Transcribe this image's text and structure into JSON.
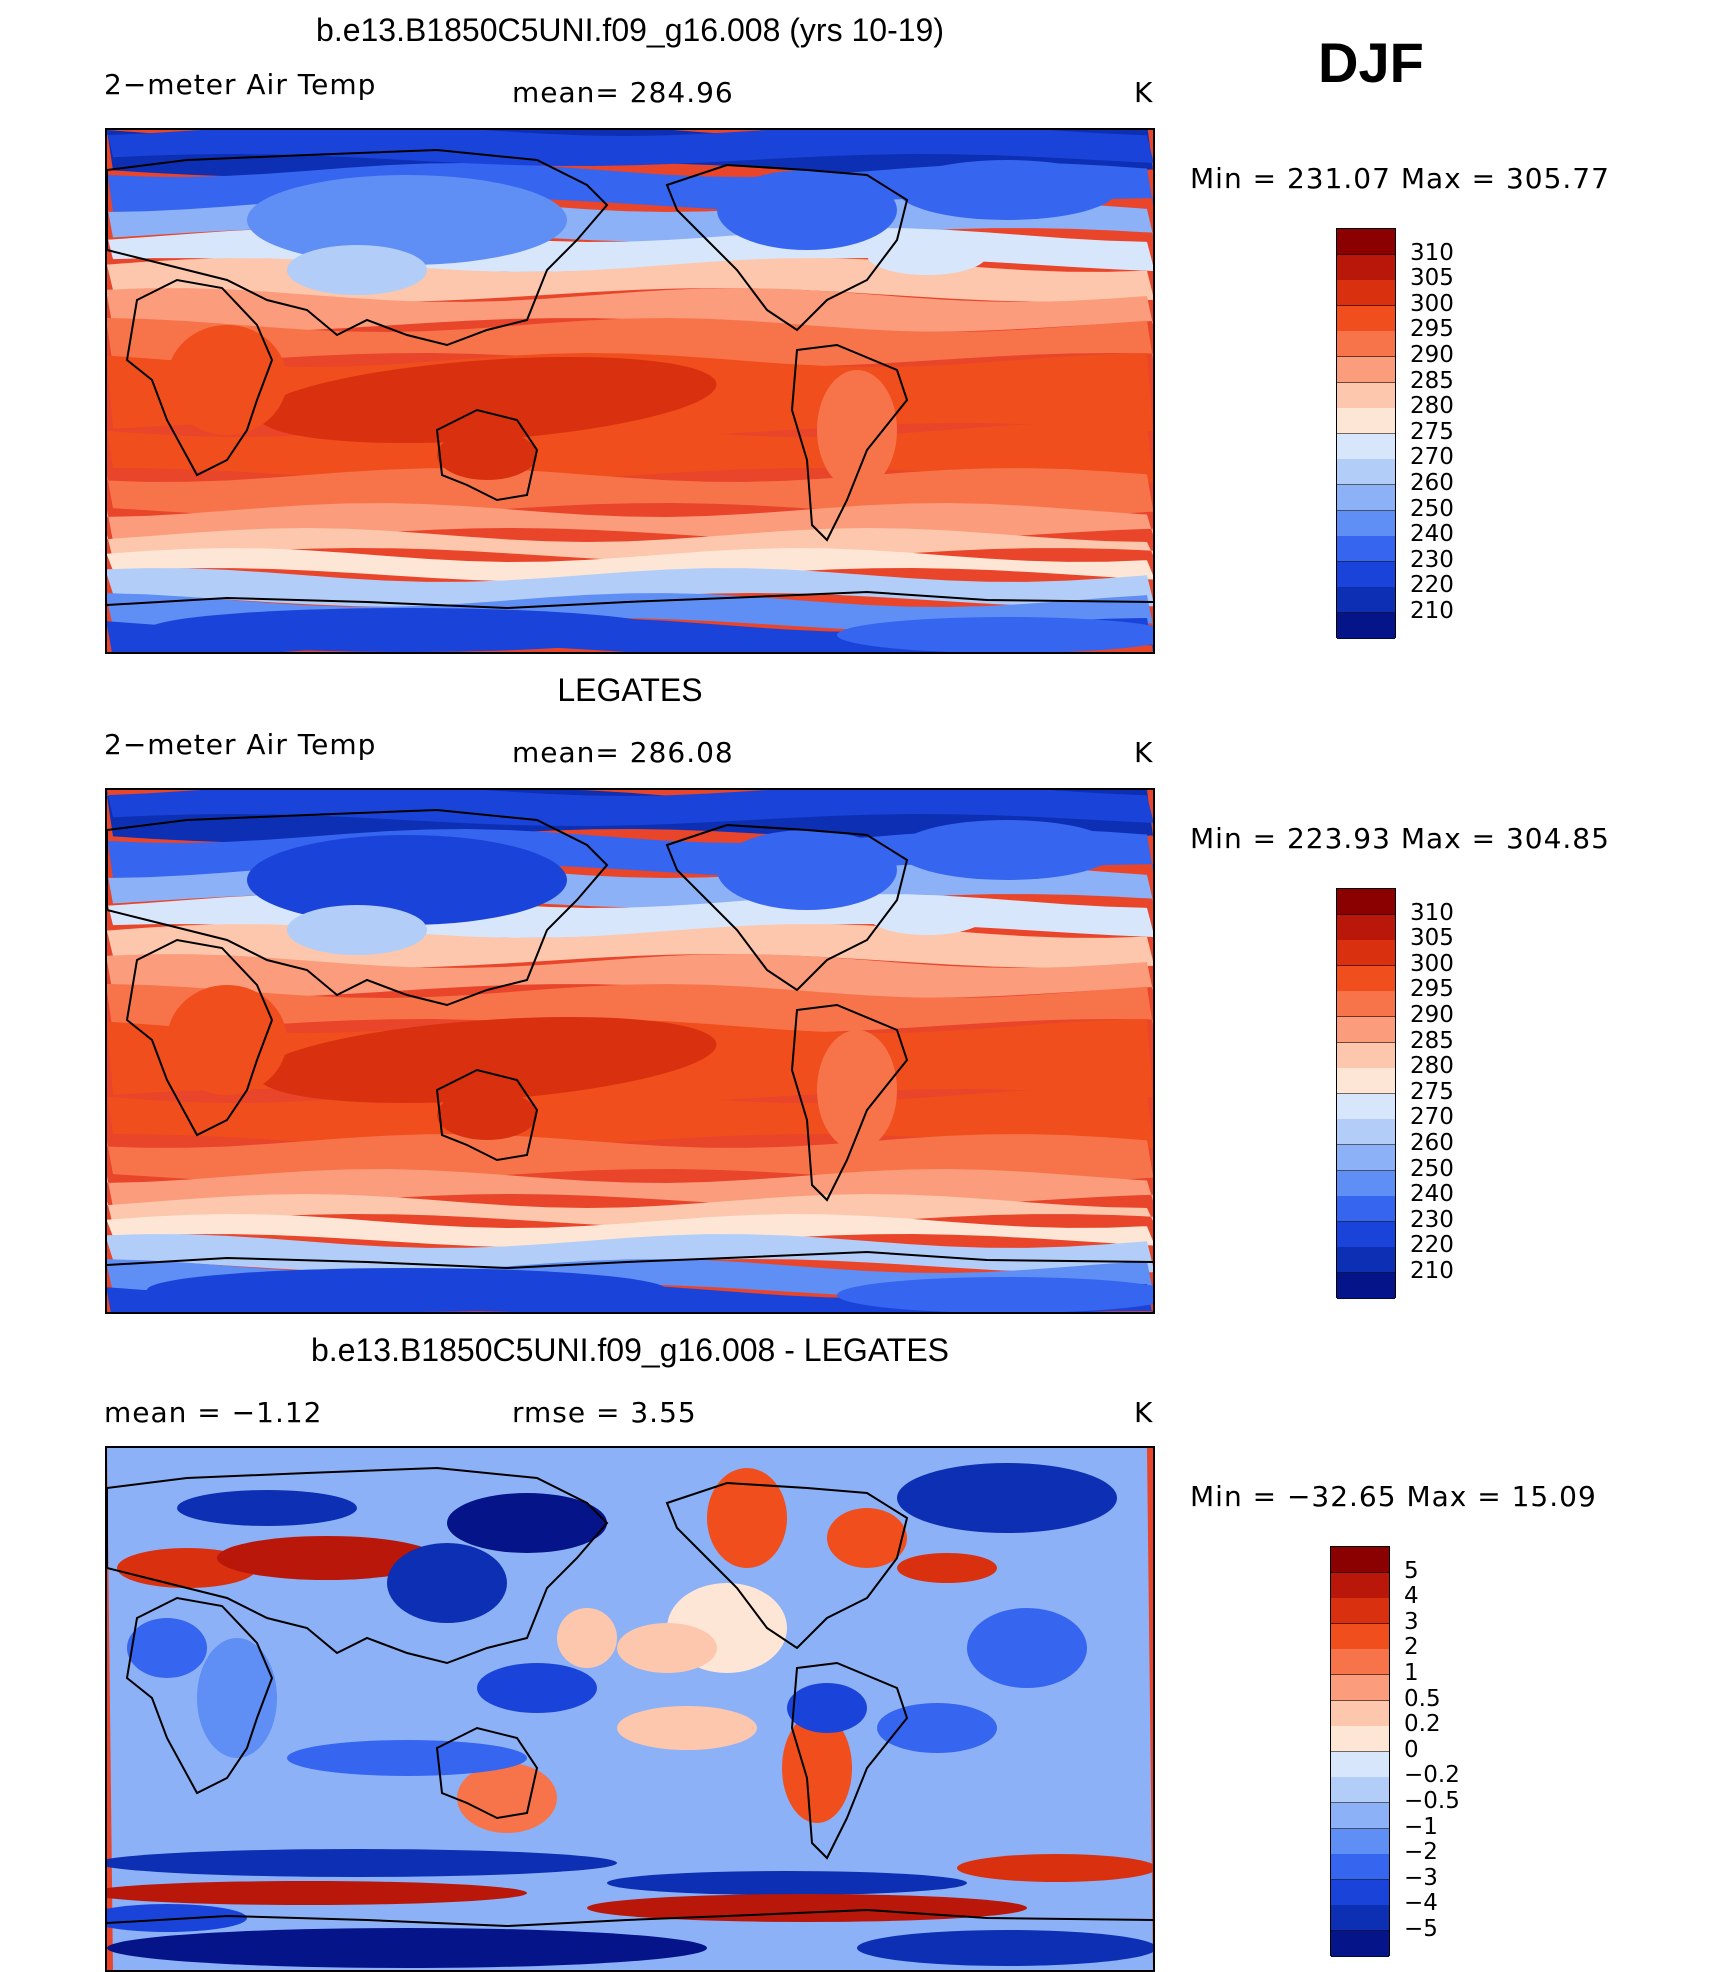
{
  "season_label": "DJF",
  "panels": [
    {
      "title": "b.e13.B1850C5UNI.f09_g16.008 (yrs 10-19)",
      "left_text": "2−meter Air Temp",
      "center_text": "mean=  284.96",
      "units": "K",
      "minmax": "Min  =  231.07  Max  =  305.77",
      "colorbar": {
        "labels": [
          "310",
          "305",
          "300",
          "295",
          "290",
          "285",
          "280",
          "275",
          "270",
          "260",
          "250",
          "240",
          "230",
          "220",
          "210"
        ],
        "colors": [
          "#8b0000",
          "#b8170a",
          "#d9310f",
          "#f04e1d",
          "#f7744a",
          "#fb9c7c",
          "#fcc7ac",
          "#fee6d6",
          "#d8e6fb",
          "#b2cdf8",
          "#8cb1f6",
          "#5f8ef4",
          "#3665f0",
          "#1a44d9",
          "#0d2fb3",
          "#06148a"
        ]
      },
      "variant": "model"
    },
    {
      "title": "LEGATES",
      "left_text": "2−meter Air Temp",
      "center_text": "mean=  286.08",
      "units": "K",
      "minmax": "Min  =  223.93  Max  =  304.85",
      "colorbar": {
        "labels": [
          "310",
          "305",
          "300",
          "295",
          "290",
          "285",
          "280",
          "275",
          "270",
          "260",
          "250",
          "240",
          "230",
          "220",
          "210"
        ],
        "colors": [
          "#8b0000",
          "#b8170a",
          "#d9310f",
          "#f04e1d",
          "#f7744a",
          "#fb9c7c",
          "#fcc7ac",
          "#fee6d6",
          "#d8e6fb",
          "#b2cdf8",
          "#8cb1f6",
          "#5f8ef4",
          "#3665f0",
          "#1a44d9",
          "#0d2fb3",
          "#06148a"
        ]
      },
      "variant": "obs"
    },
    {
      "title": "b.e13.B1850C5UNI.f09_g16.008 - LEGATES",
      "left_text": "mean  =    −1.12",
      "center_text": "rmse  =      3.55",
      "units": "K",
      "minmax": "Min  =  −32.65  Max  =     15.09",
      "colorbar": {
        "labels": [
          "5",
          "4",
          "3",
          "2",
          "1",
          "0.5",
          "0.2",
          "0",
          "−0.2",
          "−0.5",
          "−1",
          "−2",
          "−3",
          "−4",
          "−5"
        ],
        "colors": [
          "#8b0000",
          "#b8170a",
          "#d9310f",
          "#f04e1d",
          "#f7744a",
          "#fb9c7c",
          "#fcc7ac",
          "#fee6d6",
          "#d8e6fb",
          "#b2cdf8",
          "#8cb1f6",
          "#5f8ef4",
          "#3665f0",
          "#1a44d9",
          "#0d2fb3",
          "#06148a"
        ]
      },
      "variant": "diff"
    }
  ]
}
